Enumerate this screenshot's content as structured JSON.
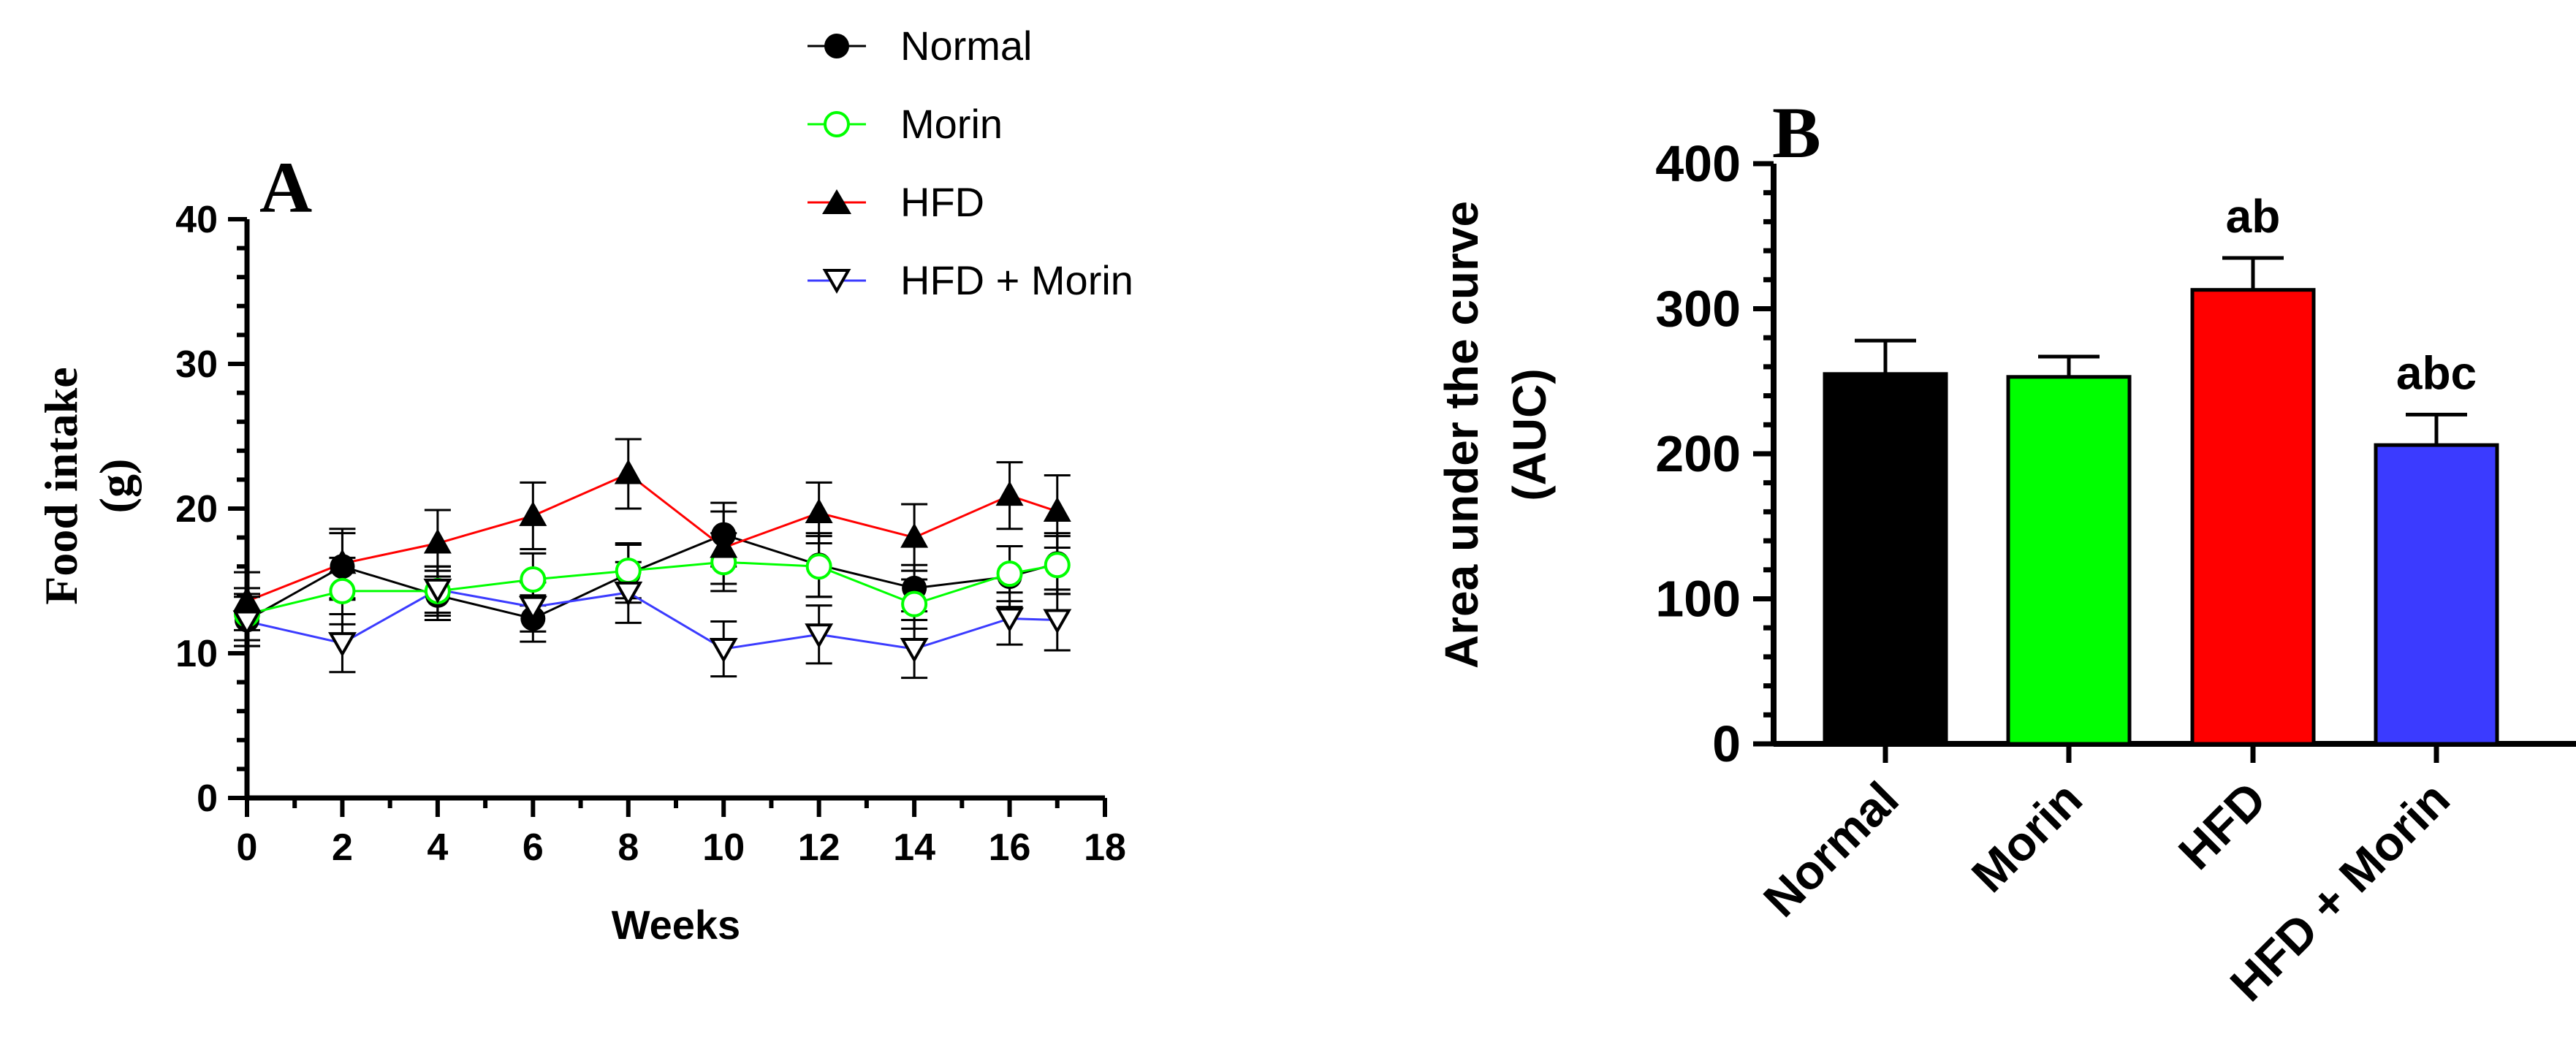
{
  "colors": {
    "axis": "#000000",
    "Normal": "#000000",
    "Morin": "#00ff00",
    "HFD": "#ff0000",
    "HFD + Morin": "#3b3bff"
  },
  "chart_data": [
    {
      "type": "line",
      "panel_label": "A",
      "xlabel": "Weeks",
      "ylabel_line1": "Food intake",
      "ylabel_line2": "(g)",
      "xlim": [
        0,
        18
      ],
      "ylim": [
        0,
        40
      ],
      "xticks": [
        "0",
        "2",
        "4",
        "6",
        "8",
        "10",
        "12",
        "14",
        "16",
        "18"
      ],
      "yticks": [
        "0",
        "10",
        "20",
        "30",
        "40"
      ],
      "x": [
        0,
        2,
        4,
        6,
        8,
        10,
        12,
        14,
        16,
        17
      ],
      "legend_position": "top",
      "series": [
        {
          "name": "Normal",
          "marker": "filled-circle",
          "values": [
            12.3,
            16.0,
            14.0,
            12.4,
            15.5,
            18.2,
            16.1,
            14.5,
            15.3,
            16.2
          ],
          "errors": [
            1.8,
            2.3,
            1.7,
            1.6,
            2.0,
            2.2,
            2.2,
            1.6,
            2.1,
            2.1
          ]
        },
        {
          "name": "Morin",
          "marker": "open-circle",
          "values": [
            12.7,
            14.3,
            14.3,
            15.1,
            15.7,
            16.3,
            16.0,
            13.4,
            15.5,
            16.1
          ],
          "errors": [
            1.8,
            2.3,
            1.7,
            1.8,
            1.9,
            2.0,
            2.1,
            1.7,
            1.9,
            2.0
          ]
        },
        {
          "name": "HFD",
          "marker": "filled-triangle-up",
          "values": [
            13.6,
            16.2,
            17.6,
            19.5,
            22.4,
            17.3,
            19.7,
            18.0,
            20.9,
            19.8
          ],
          "errors": [
            2.0,
            2.4,
            2.3,
            2.3,
            2.4,
            2.5,
            2.1,
            2.3,
            2.3,
            2.5
          ]
        },
        {
          "name": "HFD + Morin",
          "marker": "open-triangle-down",
          "values": [
            12.2,
            10.7,
            14.4,
            13.2,
            14.2,
            10.3,
            11.3,
            10.3,
            12.4,
            12.3
          ],
          "errors": [
            1.7,
            2.0,
            1.6,
            1.7,
            2.1,
            1.9,
            2.0,
            2.0,
            1.8,
            2.1
          ]
        }
      ]
    },
    {
      "type": "bar",
      "panel_label": "B",
      "ylabel_line1": "Area under the curve",
      "ylabel_line2": "(AUC)",
      "ylim": [
        0,
        400
      ],
      "yticks": [
        "0",
        "100",
        "200",
        "300",
        "400"
      ],
      "categories": [
        "Normal",
        "Morin",
        "HFD",
        "HFD + Morin"
      ],
      "values": [
        255,
        253,
        313,
        206
      ],
      "errors": [
        23,
        14,
        22,
        21
      ],
      "annotations": [
        "",
        "",
        "ab",
        "abc"
      ]
    }
  ]
}
